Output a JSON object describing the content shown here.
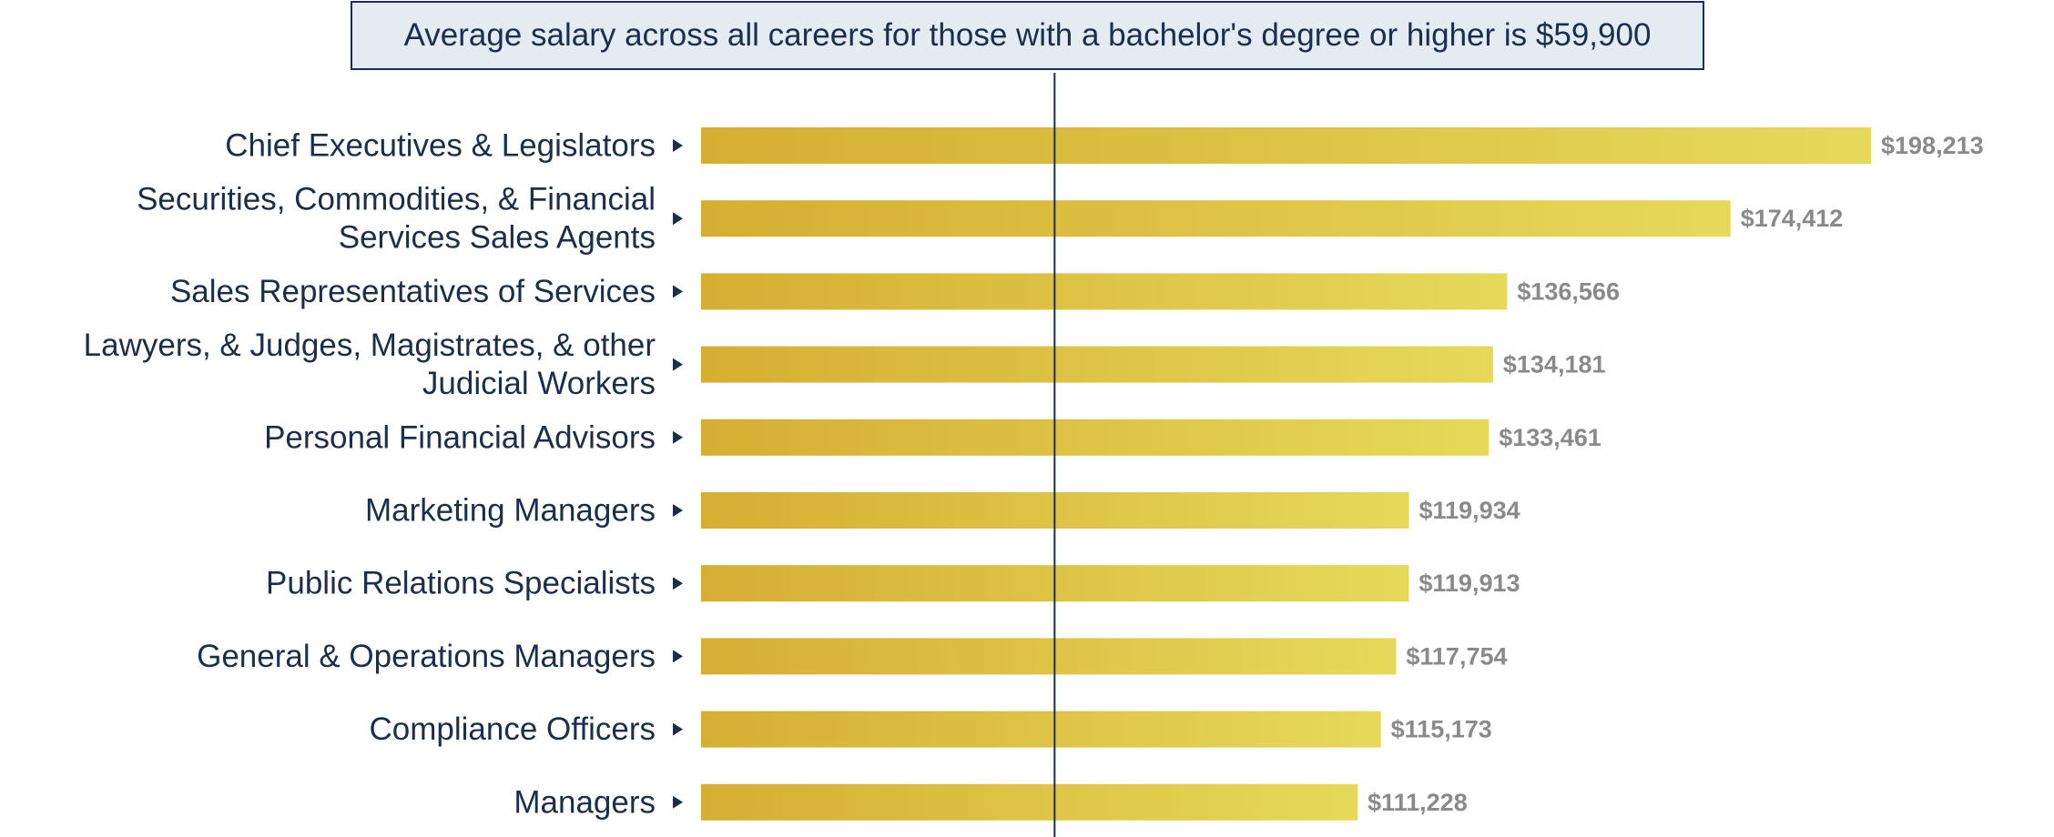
{
  "callout": {
    "text": "Average salary across all careers for those with a bachelor's degree or higher is $59,900"
  },
  "colors": {
    "label_text": "#1b2f4d",
    "value_text": "#8a8a8a",
    "bar_start": "#d6ae32",
    "bar_end": "#e6d95a",
    "reference_line": "#1b2f4d",
    "callout_bg": "#e3ebf3",
    "callout_border": "#1b2f4d",
    "marker_icon": "play-triangle-icon"
  },
  "chart_data": {
    "type": "bar",
    "orientation": "horizontal",
    "categories": [
      [
        "Chief Executives & Legislators"
      ],
      [
        "Securities, Commodities, & Financial",
        "Services Sales Agents"
      ],
      [
        "Sales Representatives of Services"
      ],
      [
        "Lawyers, & Judges, Magistrates, & other",
        "Judicial Workers"
      ],
      [
        "Personal Financial Advisors"
      ],
      [
        "Marketing Managers"
      ],
      [
        "Public Relations Specialists"
      ],
      [
        "General & Operations Managers"
      ],
      [
        "Compliance Officers"
      ],
      [
        "Managers"
      ]
    ],
    "values": [
      198213,
      174412,
      136566,
      134181,
      133461,
      119934,
      119913,
      117754,
      115173,
      111228
    ],
    "value_labels": [
      "$198,213",
      "$174,412",
      "$136,566",
      "$134,181",
      "$133,461",
      "$119,934",
      "$119,913",
      "$117,754",
      "$115,173",
      "$111,228"
    ],
    "reference_line": {
      "value": 59900
    },
    "xlim": [
      0,
      198213
    ],
    "grid": false,
    "legend": "none"
  }
}
